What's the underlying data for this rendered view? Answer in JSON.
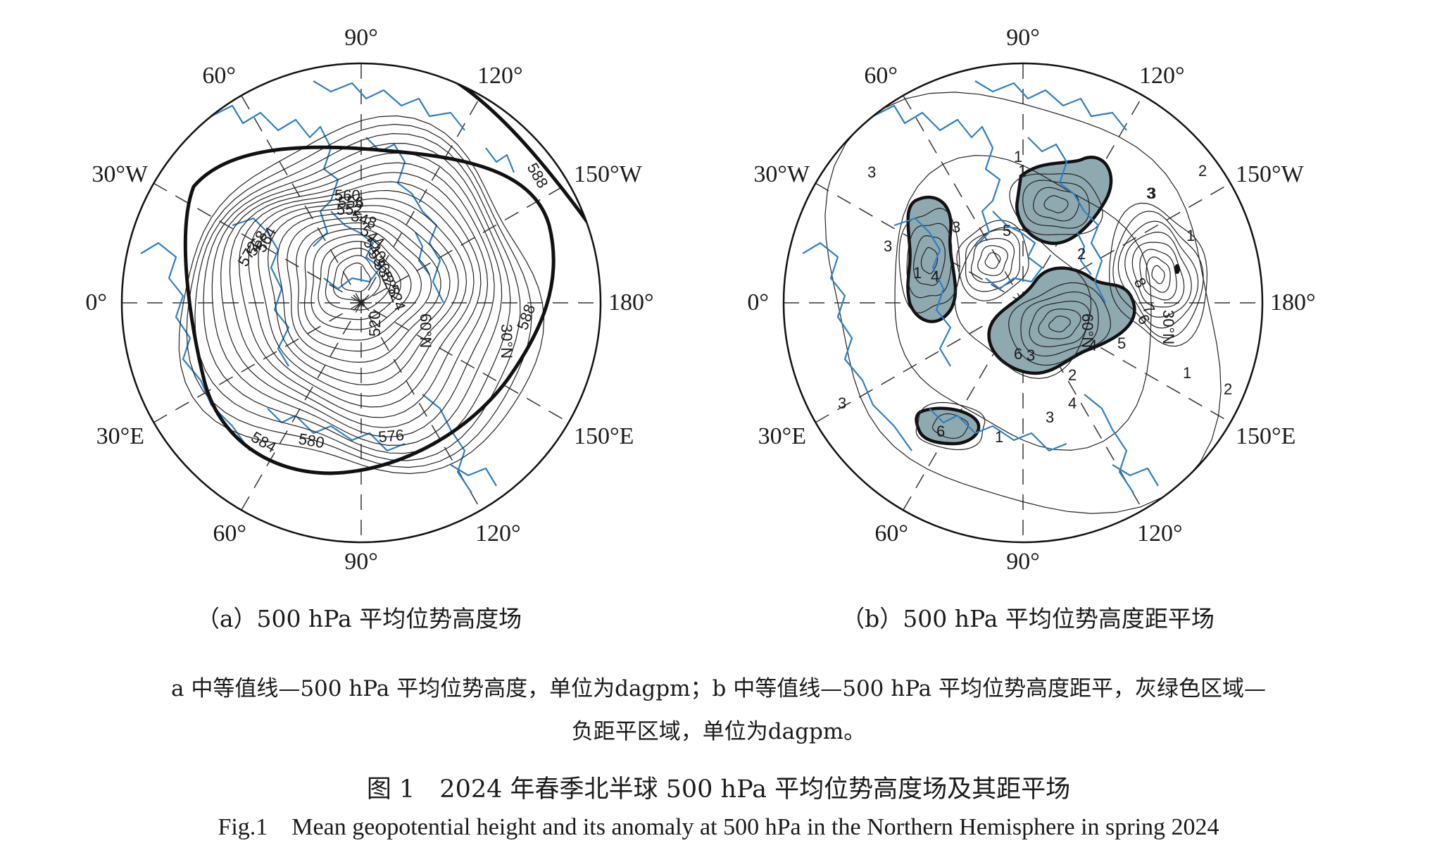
{
  "panels": {
    "a": {
      "caption": "（a）500 hPa 平均位势高度场",
      "lon_labels": {
        "top": "90°",
        "upper_left": "60°",
        "upper_right": "120°",
        "left_upper": "30°W",
        "right_upper": "150°W",
        "left": "0°",
        "right": "180°",
        "left_lower": "30°E",
        "right_lower": "150°E",
        "lower_left": "60°",
        "lower_right": "120°",
        "bottom": "90°"
      },
      "lat_labels": [
        "30°N",
        "60°N"
      ],
      "contour_labels": [
        "588",
        "588",
        "584",
        "580",
        "576",
        "572",
        "568",
        "564",
        "560",
        "556",
        "552",
        "548",
        "544",
        "540",
        "536",
        "532",
        "528",
        "524",
        "520"
      ]
    },
    "b": {
      "caption": "（b）500 hPa 平均位势高度距平场",
      "lon_labels": {
        "top": "90°",
        "upper_left": "60°",
        "upper_right": "120°",
        "left_upper": "30°W",
        "right_upper": "150°W",
        "left": "0°",
        "right": "180°",
        "left_lower": "30°E",
        "right_lower": "150°E",
        "lower_left": "60°",
        "lower_right": "120°",
        "bottom": "90°"
      },
      "lat_labels": [
        "30°N",
        "60°N"
      ],
      "contour_labels": [
        "3",
        "3",
        "3",
        "3",
        "1",
        "3",
        "2",
        "3",
        "1",
        "8",
        "7",
        "6",
        "5",
        "4",
        "2",
        "3",
        "4",
        "1",
        "1",
        "2",
        "2",
        "1",
        "4",
        "6",
        "3",
        "1",
        "5",
        "6"
      ]
    }
  },
  "note_line1": "a 中等值线—500 hPa 平均位势高度，单位为dagpm；b 中等值线—500 hPa 平均位势高度距平，灰绿色区域—",
  "note_line2": "负距平区域，单位为dagpm。",
  "title_zh": "图 1　2024 年春季北半球 500 hPa 平均位势高度场及其距平场",
  "title_en": "Fig.1　Mean geopotential height and its anomaly at 500 hPa in the Northern Hemisphere in spring 2024",
  "colors": {
    "coastline": "#2f7fc1",
    "negative_anomaly_fill": "#8fa9b1",
    "contour": "#222222",
    "frame": "#111111"
  }
}
